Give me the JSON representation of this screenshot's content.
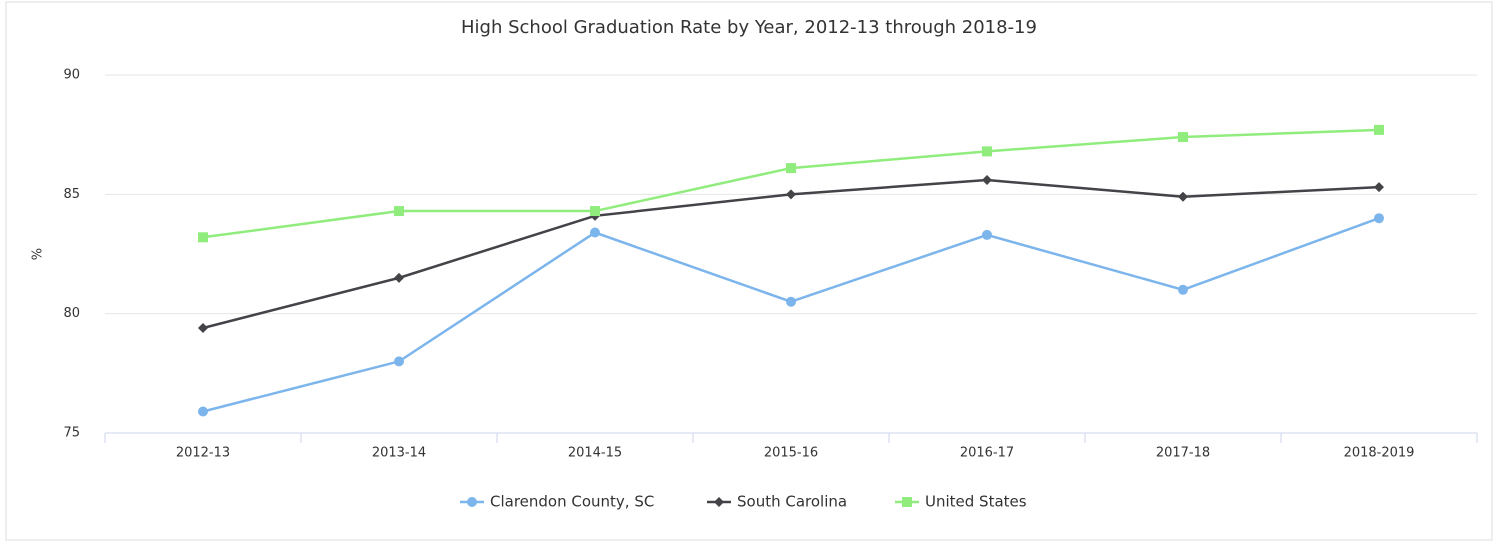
{
  "chart_data": {
    "type": "line",
    "title": "High School Graduation Rate by Year, 2012-13 through 2018-19",
    "y_label": "%",
    "categories": [
      "2012-13",
      "2013-14",
      "2014-15",
      "2015-16",
      "2016-17",
      "2017-18",
      "2018-2019"
    ],
    "series": [
      {
        "name": "Clarendon County, SC",
        "color": "#7cb5ec",
        "marker": "circle",
        "values": [
          75.9,
          78.0,
          83.4,
          80.5,
          83.3,
          81.0,
          84.0
        ]
      },
      {
        "name": "South Carolina",
        "color": "#434348",
        "marker": "diamond",
        "values": [
          79.4,
          81.5,
          84.1,
          85.0,
          85.6,
          84.9,
          85.3
        ]
      },
      {
        "name": "United States",
        "color": "#90ed7d",
        "marker": "square",
        "values": [
          83.2,
          84.3,
          84.3,
          86.1,
          86.8,
          87.4,
          87.7
        ]
      }
    ],
    "ylim": [
      75,
      90
    ],
    "yticks": [
      75,
      80,
      85,
      90
    ],
    "grid": true,
    "legend": "bottom"
  }
}
